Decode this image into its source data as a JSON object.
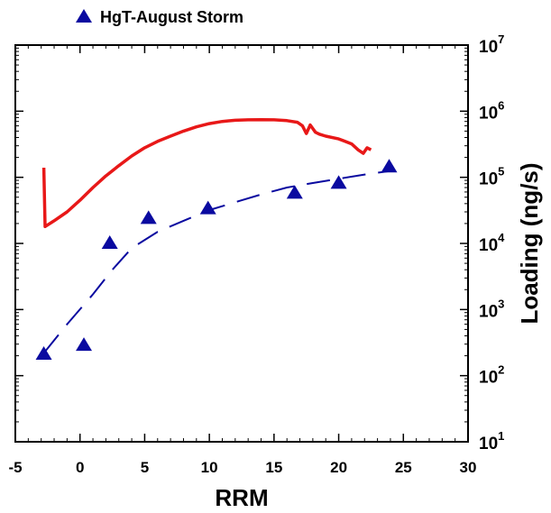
{
  "chart_data": {
    "type": "scatter",
    "xlabel": "RRM",
    "ylabel": "Loading (ng/s)",
    "y_scale": "log",
    "xlim": [
      -5,
      30
    ],
    "ylim": [
      10,
      10000000
    ],
    "x_ticks": [
      -5,
      0,
      5,
      10,
      15,
      20,
      25,
      30
    ],
    "x_tick_labels": [
      "-5",
      "0",
      "5",
      "10",
      "15",
      "20",
      "25",
      "30"
    ],
    "y_ticks": [
      10,
      100,
      1000,
      10000,
      100000,
      1000000,
      10000000
    ],
    "y_tick_labels": [
      {
        "base": "10",
        "exp": "1"
      },
      {
        "base": "10",
        "exp": "2"
      },
      {
        "base": "10",
        "exp": "3"
      },
      {
        "base": "10",
        "exp": "4"
      },
      {
        "base": "10",
        "exp": "5"
      },
      {
        "base": "10",
        "exp": "6"
      },
      {
        "base": "10",
        "exp": "7"
      }
    ],
    "grid": false,
    "legend_position": "top-left",
    "series": [
      {
        "name": "HgT-August Storm",
        "kind": "scatter",
        "marker": "triangle",
        "color": "#0a0aa0",
        "x": [
          -2.8,
          0.3,
          2.3,
          5.3,
          9.9,
          16.6,
          20.0,
          23.9
        ],
        "y": [
          220,
          300,
          10500,
          25000,
          35000,
          60000,
          85000,
          150000
        ]
      },
      {
        "kind": "line",
        "style": "dashed",
        "color": "#0a0aa0",
        "x": [
          -2.8,
          -1,
          1,
          2.5,
          4,
          6,
          8,
          10,
          12,
          14,
          16,
          18,
          20,
          22,
          24
        ],
        "y": [
          220,
          600,
          1700,
          4000,
          8500,
          15000,
          22000,
          32000,
          42000,
          55000,
          70000,
          82000,
          95000,
          110000,
          125000
        ]
      },
      {
        "kind": "line",
        "style": "solid",
        "color": "#e81818",
        "x": [
          -2.8,
          -2.7,
          -2,
          -1,
          0,
          1,
          2,
          3,
          4,
          5,
          6,
          7,
          8,
          9,
          10,
          11,
          12,
          13,
          14,
          15,
          16,
          16.8,
          17.2,
          17.5,
          17.8,
          18.2,
          18.5,
          19,
          20,
          21,
          21.5,
          21.9,
          22.2,
          22.5
        ],
        "y": [
          140000,
          18000,
          22000,
          30000,
          45000,
          70000,
          105000,
          150000,
          210000,
          280000,
          350000,
          420000,
          500000,
          580000,
          650000,
          700000,
          730000,
          740000,
          745000,
          740000,
          720000,
          680000,
          600000,
          460000,
          620000,
          480000,
          450000,
          420000,
          380000,
          320000,
          260000,
          230000,
          280000,
          260000
        ]
      }
    ]
  },
  "colors": {
    "triangle_series": "#0a0aa0",
    "red_curve": "#e81818",
    "axis": "#000000"
  }
}
